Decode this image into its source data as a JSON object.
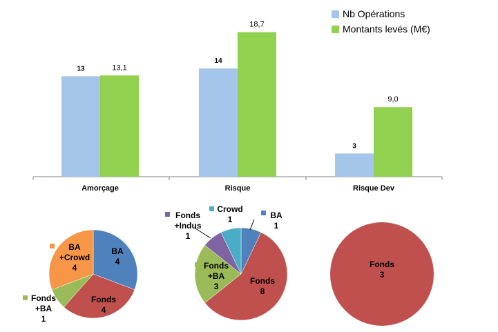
{
  "chart_data": [
    {
      "type": "bar",
      "categories": [
        "Amorçage",
        "Risque",
        "Risque Dev"
      ],
      "series": [
        {
          "name": "Nb Opérations",
          "values": [
            13,
            14,
            3
          ],
          "labels": [
            "13",
            "14",
            "3"
          ],
          "color": "#a6c5ea"
        },
        {
          "name": "Montants levés (M€)",
          "values": [
            13.1,
            18.7,
            9.0
          ],
          "labels": [
            "13,1",
            "18,7",
            "9,0"
          ],
          "color": "#92d050"
        }
      ],
      "legend": "top-right",
      "grid": false
    },
    {
      "type": "pie",
      "slices": [
        {
          "label": [
            "BA",
            "4"
          ],
          "value": 4,
          "color": "#4f81bd"
        },
        {
          "label": [
            "Fonds",
            "4"
          ],
          "value": 4,
          "color": "#c0504d"
        },
        {
          "label": [
            "Fonds",
            "+BA",
            "1"
          ],
          "value": 1,
          "color": "#9bbb59"
        },
        {
          "label": [
            "BA",
            "+Crowd",
            "4"
          ],
          "value": 4,
          "color": "#f79646"
        }
      ]
    },
    {
      "type": "pie",
      "slices": [
        {
          "label": [
            "BA",
            "1"
          ],
          "value": 1,
          "color": "#4f81bd"
        },
        {
          "label": [
            "Fonds",
            "8"
          ],
          "value": 8,
          "color": "#c0504d"
        },
        {
          "label": [
            "Fonds",
            "+BA",
            "3"
          ],
          "value": 3,
          "color": "#9bbb59"
        },
        {
          "label": [
            "Fonds",
            "+Indus",
            "1"
          ],
          "value": 1,
          "color": "#8064a2"
        },
        {
          "label": [
            "Crowd",
            "1"
          ],
          "value": 1,
          "color": "#4bacc6"
        }
      ]
    },
    {
      "type": "pie",
      "slices": [
        {
          "label": [
            "Fonds",
            "3"
          ],
          "value": 3,
          "color": "#c0504d"
        }
      ]
    }
  ]
}
